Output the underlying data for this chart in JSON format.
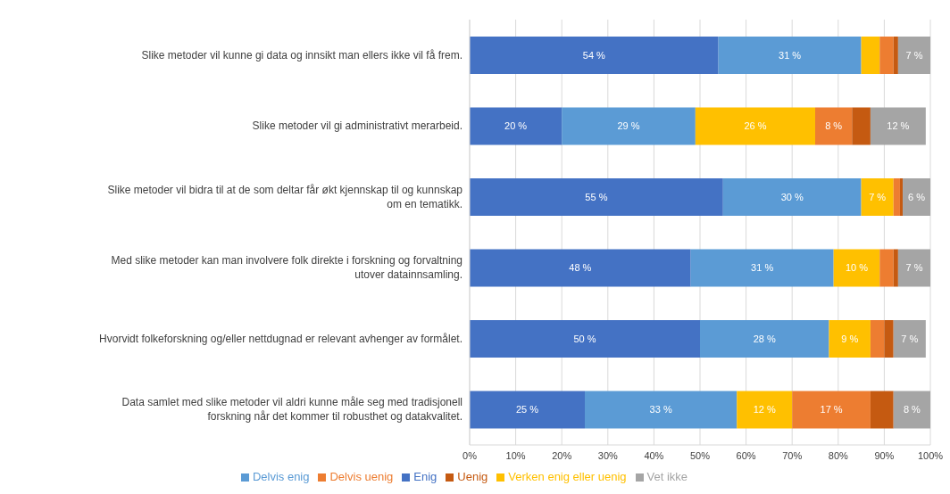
{
  "chart_data": {
    "type": "bar",
    "orientation": "horizontal",
    "stacked": true,
    "categories": [
      "Slike metoder vil kunne gi data og innsikt man ellers ikke vil få frem.",
      "Slike metoder vil gi administrativt merarbeid.",
      "Slike metoder vil bidra til at de som deltar får økt kjennskap til og kunnskap om en tematikk.",
      "Med slike metoder kan man involvere folk direkte i forskning og forvaltning utover datainnsamling.",
      "Hvorvidt folkeforskning og/eller nettdugnad er relevant avhenger av formålet.",
      "Data samlet med slike metoder vil aldri kunne måle seg med tradisjonell forskning når det kommer til robusthet og datakvalitet."
    ],
    "series": [
      {
        "name": "Enig",
        "color": "#4472c4",
        "values": [
          54,
          20,
          55,
          48,
          50,
          25
        ],
        "value_labels": [
          "54 %",
          "20 %",
          "55 %",
          "48 %",
          "50 %",
          "25 %"
        ]
      },
      {
        "name": "Delvis enig",
        "color": "#5b9bd5",
        "values": [
          31,
          29,
          30,
          31,
          28,
          33
        ],
        "value_labels": [
          "31 %",
          "29 %",
          "30 %",
          "31 %",
          "28 %",
          "33 %"
        ]
      },
      {
        "name": "Verken enig eller uenig",
        "color": "#ffc000",
        "values": [
          4,
          26,
          7,
          10,
          9,
          12
        ],
        "value_labels": [
          null,
          "26 %",
          "7 %",
          "10 %",
          "9 %",
          "12 %"
        ]
      },
      {
        "name": "Delvis uenig",
        "color": "#ed7d31",
        "values": [
          3,
          8,
          1.4,
          3,
          3,
          17
        ],
        "value_labels": [
          null,
          "8 %",
          null,
          null,
          null,
          "17 %"
        ]
      },
      {
        "name": "Uenig",
        "color": "#c55a11",
        "values": [
          1,
          4,
          0.6,
          1,
          2,
          5
        ],
        "value_labels": [
          null,
          null,
          null,
          null,
          null,
          null
        ]
      },
      {
        "name": "Vet ikke",
        "color": "#a5a5a5",
        "values": [
          7,
          12,
          6,
          7,
          7,
          8
        ],
        "value_labels": [
          "7 %",
          "12 %",
          "6 %",
          "7 %",
          "7 %",
          "8 %"
        ]
      }
    ],
    "xlim": [
      0,
      100
    ],
    "xticks": [
      {
        "value": 0,
        "label": "0%"
      },
      {
        "value": 10,
        "label": "10%"
      },
      {
        "value": 20,
        "label": "20%"
      },
      {
        "value": 30,
        "label": "30%"
      },
      {
        "value": 40,
        "label": "40%"
      },
      {
        "value": 50,
        "label": "50%"
      },
      {
        "value": 60,
        "label": "60%"
      },
      {
        "value": 70,
        "label": "70%"
      },
      {
        "value": 80,
        "label": "80%"
      },
      {
        "value": 90,
        "label": "90%"
      },
      {
        "value": 100,
        "label": "100%"
      }
    ],
    "grid": "x",
    "legend": "bottom"
  }
}
